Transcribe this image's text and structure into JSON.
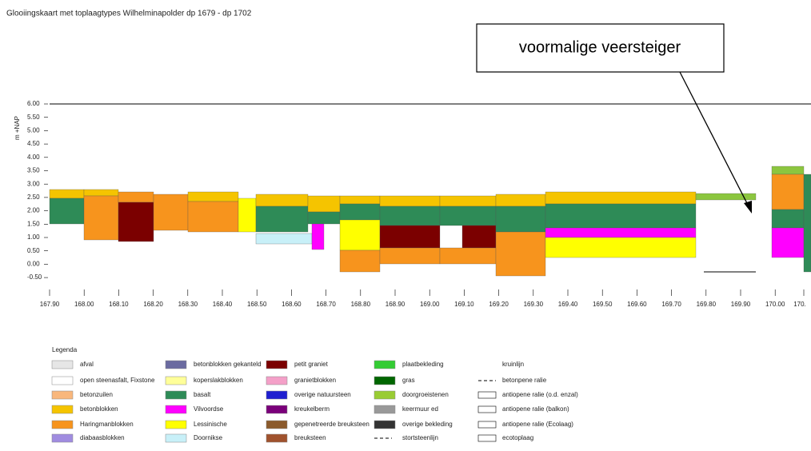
{
  "title": "Glooiingskaart met toplaagtypes Wilhelminapolder dp 1679 - dp 1702",
  "callout": "voormalige veersteiger",
  "y_axis": {
    "label": "m +NAP",
    "ticks": [
      "6.00",
      "5.50",
      "5.00",
      "4.50",
      "4.00",
      "3.50",
      "3.00",
      "2.50",
      "2.00",
      "1.50",
      "1.00",
      "0.50",
      "0.00",
      "-0.50"
    ]
  },
  "x_axis": {
    "ticks": [
      "167.90",
      "168.00",
      "168.10",
      "168.20",
      "168.30",
      "168.40",
      "168.50",
      "168.60",
      "168.70",
      "168.80",
      "168.90",
      "169.00",
      "169.10",
      "169.20",
      "169.30",
      "169.40",
      "169.50",
      "169.60",
      "169.70",
      "169.80",
      "169.90",
      "170.00",
      "170."
    ]
  },
  "legend": {
    "title": "Legenda",
    "columns": [
      [
        {
          "label": "afval",
          "color": "#e6e6e6"
        },
        {
          "label": "open steenasfalt, Fixstone",
          "color": "#ffffff"
        },
        {
          "label": "betonzuilen",
          "color": "#f9b77c"
        },
        {
          "label": "betonblokken",
          "color": "#f5c400"
        },
        {
          "label": "Haringmanblokken",
          "color": "#f7941d"
        },
        {
          "label": "diabaasblokken",
          "color": "#a08ce0"
        }
      ],
      [
        {
          "label": "betonblokken gekanteld",
          "color": "#6a6aa0"
        },
        {
          "label": "koperslakblokken",
          "color": "#ffff99"
        },
        {
          "label": "basalt",
          "color": "#2e8b57"
        },
        {
          "label": "Vilvoordse",
          "color": "#ff00ff"
        },
        {
          "label": "Lessinische",
          "color": "#ffff00"
        },
        {
          "label": "Doornikse",
          "color": "#c8f0f8"
        }
      ],
      [
        {
          "label": "petit graniet",
          "color": "#7b0000"
        },
        {
          "label": "granietblokken",
          "color": "#f4a0c8"
        },
        {
          "label": "overige natuursteen",
          "color": "#1f1fd0"
        },
        {
          "label": "kreukelberm",
          "color": "#7a007a"
        },
        {
          "label": "gepenetreerde breuksteen",
          "color": "#8b5a2b"
        },
        {
          "label": "breuksteen",
          "color": "#a0522d"
        }
      ],
      [
        {
          "label": "plaatbekleding",
          "color": "#33cc33"
        },
        {
          "label": "gras",
          "color": "#006600"
        },
        {
          "label": "doorgroeistenen",
          "color": "#99cc33"
        },
        {
          "label": "keermuur ed",
          "color": "#999999"
        },
        {
          "label": "overige bekleding",
          "color": "#333333"
        },
        {
          "label": "stortsteenlijn"
        }
      ],
      [
        {
          "label": "kruinlijn"
        },
        {
          "label": "betonpene ralie"
        },
        {
          "label": "antiopene ralie (o.d. enzal)"
        },
        {
          "label": "antiopene ralie (balkon)"
        },
        {
          "label": "antiopene ralie (Ecolaag)"
        },
        {
          "label": "ecotoplaag"
        }
      ]
    ]
  }
}
